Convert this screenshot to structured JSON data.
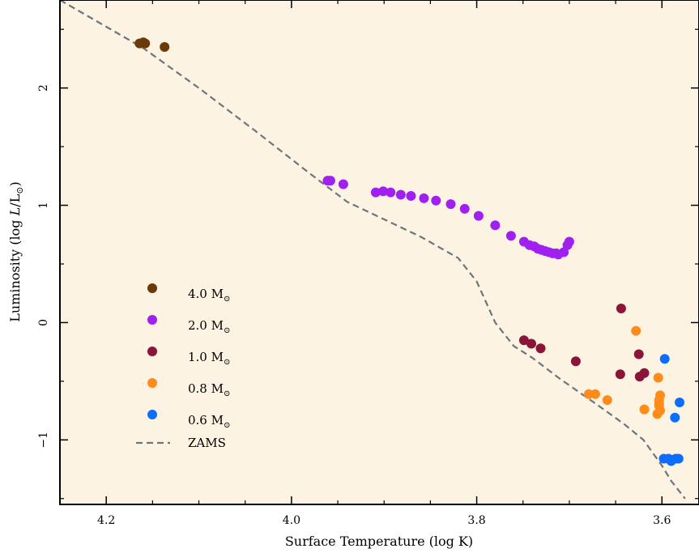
{
  "chart_data": {
    "type": "scatter",
    "xlabel": "Surface Temperature (log K)",
    "ylabel_parts": {
      "main": "Luminosity (log ",
      "italic": "L",
      "mid": "/L",
      "sub": "⊙",
      "end": ")"
    },
    "xlim": [
      4.25,
      3.56
    ],
    "ylim": [
      -1.55,
      2.75
    ],
    "x_ticks": [
      4.2,
      4.0,
      3.8,
      3.6
    ],
    "x_tick_labels": [
      "4.2",
      "4.0",
      "3.8",
      "3.6"
    ],
    "y_ticks": [
      -1,
      0,
      1,
      2
    ],
    "y_tick_labels": [
      "−1",
      "0",
      "1",
      "2"
    ],
    "background": "#fdf3e3",
    "legend_position": "lower-left",
    "series": [
      {
        "name": "4.0 M",
        "name_sub": "⊙",
        "color": "#6b3a0a",
        "x": [
          4.164,
          4.16,
          4.158,
          4.137
        ],
        "y": [
          2.38,
          2.39,
          2.38,
          2.35
        ]
      },
      {
        "name": "2.0 M",
        "name_sub": "⊙",
        "color": "#a020f0",
        "x": [
          3.961,
          3.958,
          3.944,
          3.909,
          3.901,
          3.893,
          3.882,
          3.871,
          3.857,
          3.844,
          3.828,
          3.813,
          3.798,
          3.78,
          3.763,
          3.749,
          3.743,
          3.738,
          3.734,
          3.73,
          3.726,
          3.722,
          3.718,
          3.714,
          3.712,
          3.706,
          3.702,
          3.7
        ],
        "y": [
          1.21,
          1.21,
          1.18,
          1.11,
          1.12,
          1.11,
          1.09,
          1.08,
          1.06,
          1.04,
          1.01,
          0.97,
          0.91,
          0.83,
          0.74,
          0.69,
          0.66,
          0.65,
          0.63,
          0.62,
          0.61,
          0.6,
          0.59,
          0.59,
          0.58,
          0.6,
          0.66,
          0.69
        ]
      },
      {
        "name": "1.0 M",
        "name_sub": "⊙",
        "color": "#8b1538",
        "x": [
          3.749,
          3.741,
          3.731,
          3.693,
          3.644,
          3.645,
          3.625,
          3.619,
          3.624
        ],
        "y": [
          -0.15,
          -0.18,
          -0.22,
          -0.33,
          0.12,
          -0.44,
          -0.27,
          -0.43,
          -0.46
        ]
      },
      {
        "name": "0.8 M",
        "name_sub": "⊙",
        "color": "#ff8c1a",
        "x": [
          3.679,
          3.672,
          3.659,
          3.619,
          3.628,
          3.604,
          3.602,
          3.603,
          3.603,
          3.603,
          3.602,
          3.605
        ],
        "y": [
          -0.61,
          -0.61,
          -0.66,
          -0.74,
          -0.07,
          -0.47,
          -0.62,
          -0.66,
          -0.69,
          -0.71,
          -0.75,
          -0.78
        ]
      },
      {
        "name": "0.6 M",
        "name_sub": "⊙",
        "color": "#0d6efd",
        "x": [
          3.597,
          3.581,
          3.586,
          3.593,
          3.589,
          3.585,
          3.598,
          3.59,
          3.582
        ],
        "y": [
          -0.31,
          -0.68,
          -0.81,
          -1.16,
          -1.17,
          -1.16,
          -1.16,
          -1.18,
          -1.16
        ]
      }
    ],
    "zams": {
      "name": "ZAMS",
      "color": "#6c757d",
      "x": [
        4.25,
        4.16,
        4.1,
        4.04,
        3.98,
        3.94,
        3.9,
        3.86,
        3.82,
        3.8,
        3.78,
        3.76,
        3.74,
        3.71,
        3.67,
        3.64,
        3.62,
        3.6,
        3.59,
        3.575
      ],
      "y": [
        2.75,
        2.34,
        2.0,
        1.64,
        1.27,
        1.03,
        0.88,
        0.73,
        0.55,
        0.35,
        0.0,
        -0.2,
        -0.3,
        -0.48,
        -0.7,
        -0.87,
        -1.0,
        -1.22,
        -1.35,
        -1.5
      ]
    }
  }
}
